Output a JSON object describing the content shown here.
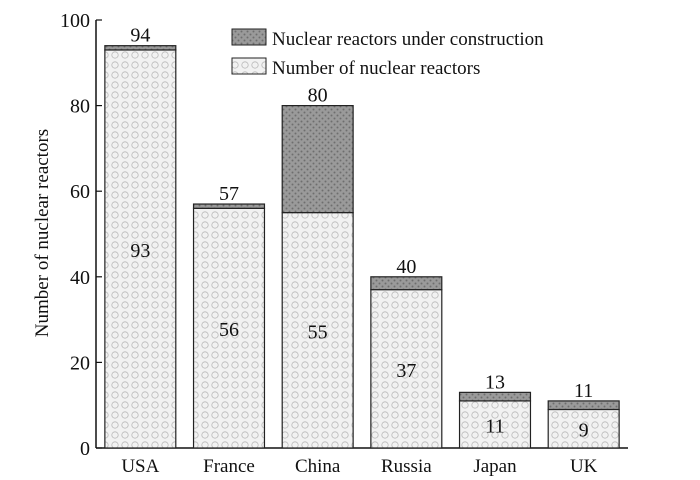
{
  "chart_data": {
    "type": "bar",
    "stacked": true,
    "categories": [
      "USA",
      "France",
      "China",
      "Russia",
      "Japan",
      "UK"
    ],
    "series": [
      {
        "name": "Number of nuclear reactors",
        "values": [
          93,
          56,
          55,
          37,
          11,
          9
        ]
      },
      {
        "name": "Nuclear reactors under construction",
        "values": [
          1,
          1,
          25,
          3,
          2,
          2
        ]
      }
    ],
    "bar_labels": {
      "inner": [
        "93",
        "56",
        "55",
        "37",
        "11",
        "9"
      ],
      "totals": [
        "94",
        "57",
        "80",
        "40",
        "13",
        "11"
      ]
    },
    "legend": {
      "placement": "top-right",
      "entries": [
        "Nuclear reactors under construction",
        "Number of nuclear reactors"
      ]
    },
    "xlabel": "",
    "ylabel": "Number of nuclear reactors",
    "ylim": [
      0,
      100
    ],
    "yticks": [
      "0",
      "20",
      "40",
      "60",
      "80",
      "100"
    ],
    "grid": false,
    "colors": {
      "base": "#ececec",
      "construction": "#8f8f8f",
      "outline": "#222222"
    }
  }
}
